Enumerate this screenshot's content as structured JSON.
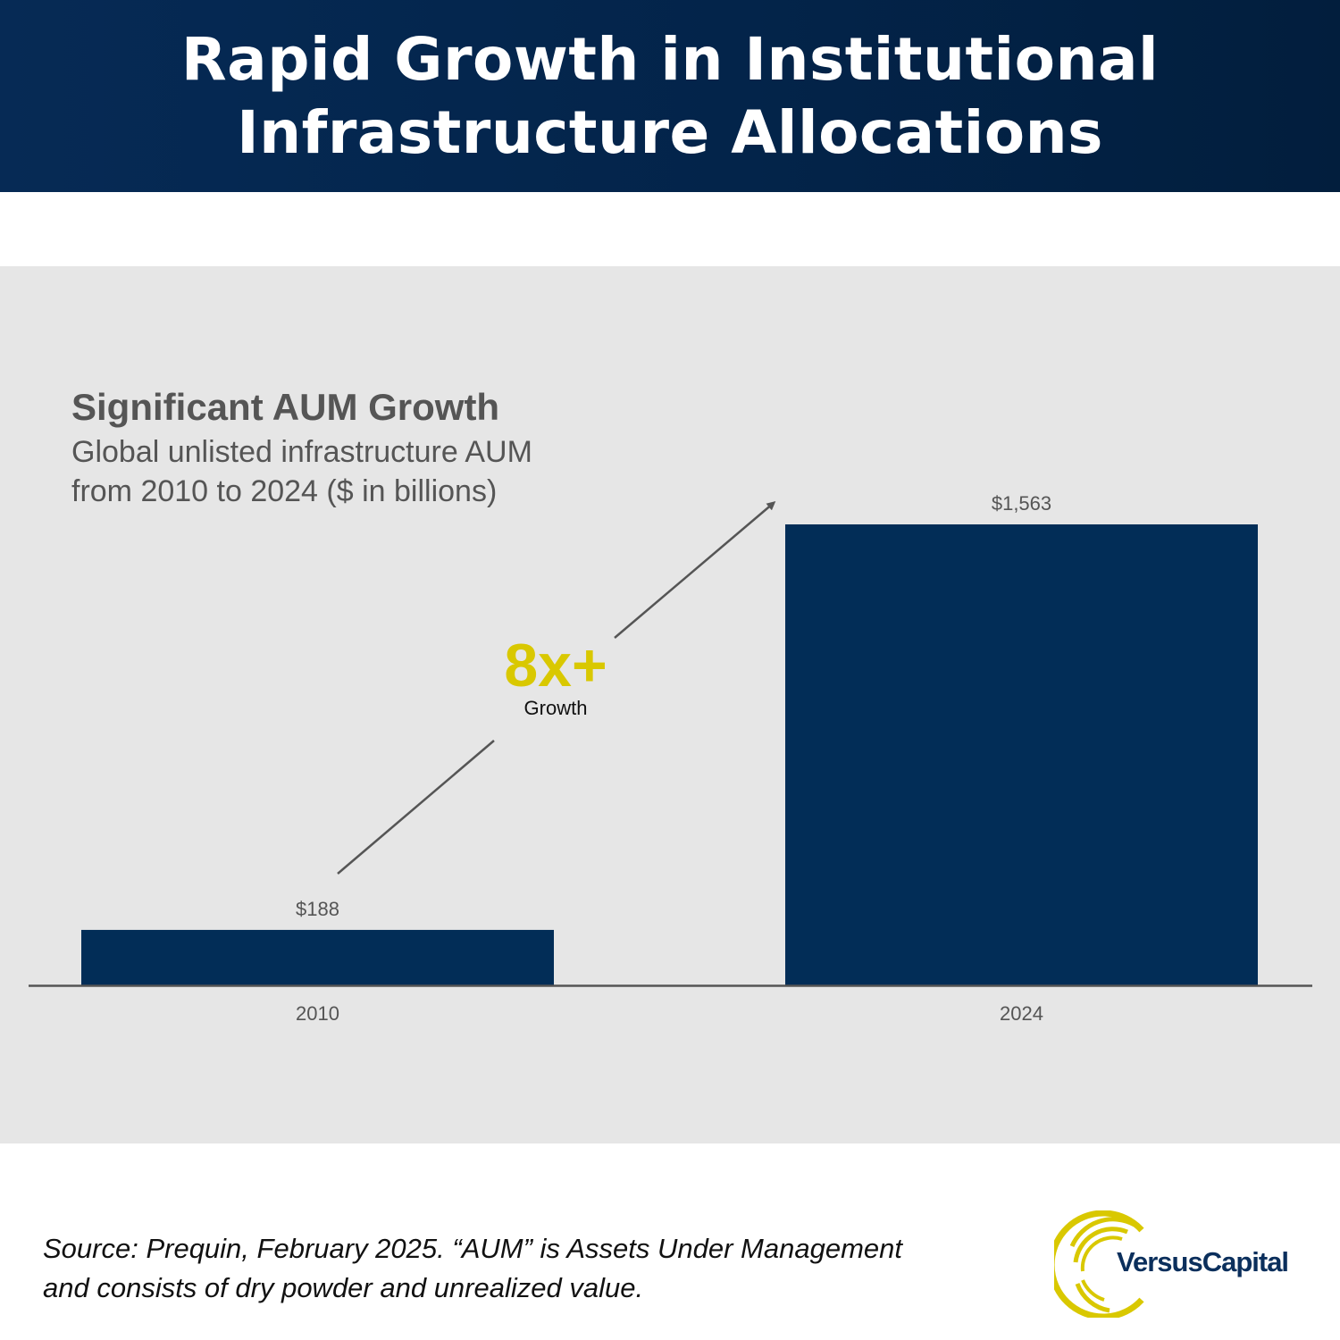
{
  "header": {
    "title_line1": "Rapid Growth in Institutional",
    "title_line2": "Infrastructure Allocations"
  },
  "colors": {
    "header_bg": "#03244a",
    "panel_bg": "#e6e6e6",
    "bar": "#022d57",
    "accent": "#d9c800",
    "axis": "#555555",
    "text_gray": "#555555"
  },
  "chart_data": {
    "type": "bar",
    "title": "Significant AUM Growth",
    "subtitle": "Global unlisted infrastructure AUM\nfrom 2010 to 2024  ($ in billions)",
    "categories": [
      "2010",
      "2024"
    ],
    "values": [
      188,
      1563
    ],
    "data_labels": [
      "$188",
      "$1,563"
    ],
    "xlabel": "",
    "ylabel": "",
    "ylim": [
      0,
      1563
    ],
    "grid": false,
    "legend": "none",
    "annotation": {
      "value": "8x+",
      "label": "Growth",
      "arrow": "from 2010 bar to 2024 bar"
    }
  },
  "footer": {
    "source_note": "Source: Prequin, February 2025. “AUM” is Assets Under Management\nand consists of dry powder and unrealized value.",
    "logo_text": "VersusCapital"
  }
}
